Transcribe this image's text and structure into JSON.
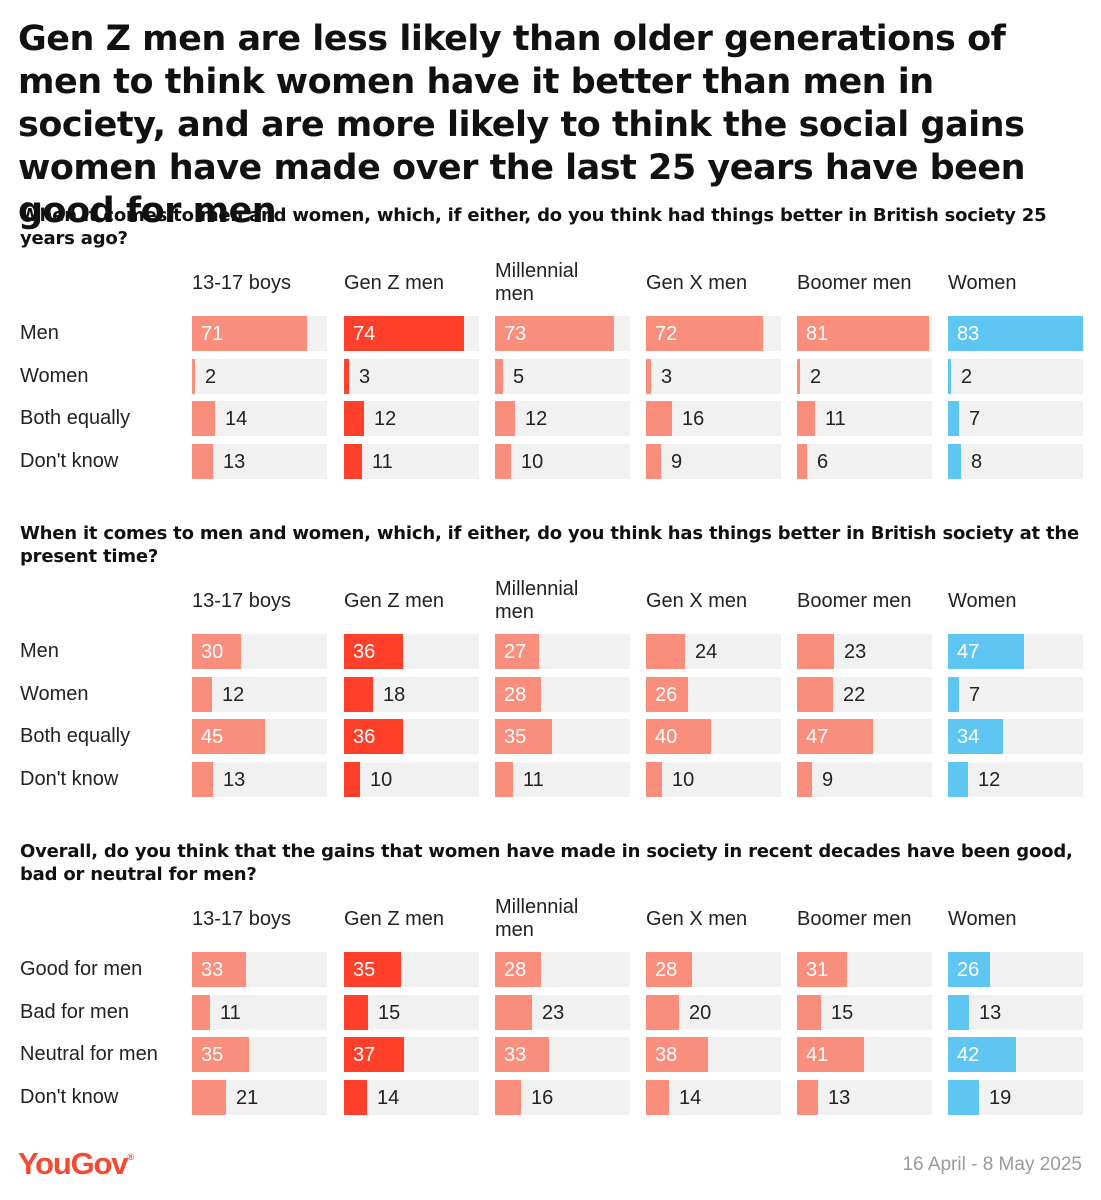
{
  "title": "Gen Z men are less likely than older generations of men to think women have it better than men in society, and are more likely to think the social gains women have made over the last 25 years have been good for men",
  "columns": [
    "13-17 boys",
    "Gen Z men",
    "Millennial men",
    "Gen X men",
    "Boomer men",
    "Women"
  ],
  "colors": {
    "men_light": "#fa8e7d",
    "gen_z": "#ff412c",
    "women": "#5fc6f4",
    "track": "#f1f1f1"
  },
  "chart_data": [
    {
      "type": "bar",
      "title": "When it comes to men and women, which, if either, do you think had things better in British society 25 years ago?",
      "categories": [
        "Men",
        "Women",
        "Both equally",
        "Don't know"
      ],
      "series": [
        {
          "name": "13-17 boys",
          "values": [
            71,
            2,
            14,
            13
          ]
        },
        {
          "name": "Gen Z men",
          "values": [
            74,
            3,
            12,
            11
          ]
        },
        {
          "name": "Millennial men",
          "values": [
            73,
            5,
            12,
            10
          ]
        },
        {
          "name": "Gen X men",
          "values": [
            72,
            3,
            16,
            9
          ]
        },
        {
          "name": "Boomer men",
          "values": [
            81,
            2,
            11,
            6
          ]
        },
        {
          "name": "Women",
          "values": [
            83,
            2,
            7,
            8
          ]
        }
      ],
      "unit": "%",
      "xlim": [
        0,
        83
      ]
    },
    {
      "type": "bar",
      "title": "When it comes to men and women, which, if either, do you think has things better in British society at the present time?",
      "categories": [
        "Men",
        "Women",
        "Both equally",
        "Don't know"
      ],
      "series": [
        {
          "name": "13-17 boys",
          "values": [
            30,
            12,
            45,
            13
          ]
        },
        {
          "name": "Gen Z men",
          "values": [
            36,
            18,
            36,
            10
          ]
        },
        {
          "name": "Millennial men",
          "values": [
            27,
            28,
            35,
            11
          ]
        },
        {
          "name": "Gen X men",
          "values": [
            24,
            26,
            40,
            10
          ]
        },
        {
          "name": "Boomer men",
          "values": [
            23,
            22,
            47,
            9
          ]
        },
        {
          "name": "Women",
          "values": [
            47,
            7,
            34,
            12
          ]
        }
      ],
      "unit": "%",
      "xlim": [
        0,
        83
      ]
    },
    {
      "type": "bar",
      "title": "Overall, do you think that the gains that women have made in society in recent decades have been good, bad or neutral for men?",
      "categories": [
        "Good for men",
        "Bad for men",
        "Neutral for men",
        "Don't know"
      ],
      "series": [
        {
          "name": "13-17 boys",
          "values": [
            33,
            11,
            35,
            21
          ]
        },
        {
          "name": "Gen Z men",
          "values": [
            35,
            15,
            37,
            14
          ]
        },
        {
          "name": "Millennial men",
          "values": [
            28,
            23,
            33,
            16
          ]
        },
        {
          "name": "Gen X men",
          "values": [
            28,
            20,
            38,
            14
          ]
        },
        {
          "name": "Boomer men",
          "values": [
            31,
            15,
            41,
            13
          ]
        },
        {
          "name": "Women",
          "values": [
            26,
            13,
            42,
            19
          ]
        }
      ],
      "unit": "%",
      "xlim": [
        0,
        83
      ]
    }
  ],
  "footer": {
    "brand": "YouGov",
    "brand_mark": "®",
    "date_range": "16 April - 8 May 2025"
  }
}
